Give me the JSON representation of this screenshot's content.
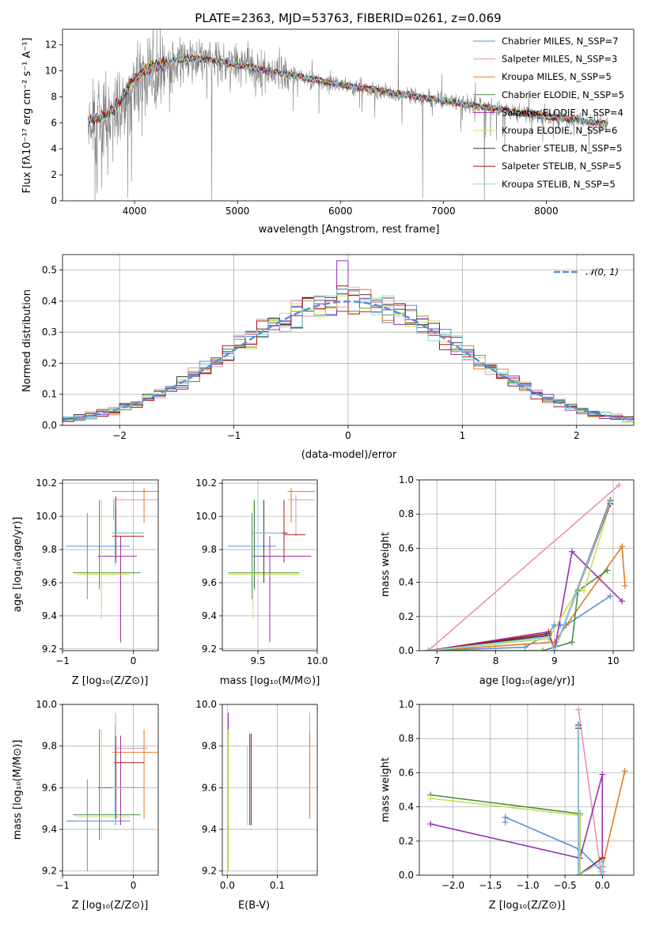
{
  "figure": {
    "title": "PLATE=2363, MJD=53763, FIBERID=0261, z=0.069",
    "panel_1": {
      "xlabel": "wavelength [Angstrom, rest frame]",
      "ylabel": "Flux [fλ10⁻¹⁷ erg cm⁻² s⁻¹ A⁻¹]"
    },
    "panel_2": {
      "xlabel": "(data-model)/error",
      "ylabel": "Normed distribution",
      "legend_gauss": "𝒩(0, 1)"
    },
    "panel_3": {
      "xlabel": "Z [log₁₀(Z/Z⊙)]",
      "ylabel": "age  [log₁₀(age/yr)]"
    },
    "panel_4": {
      "xlabel": "mass [log₁₀(M/M⊙)]"
    },
    "panel_5": {
      "xlabel": "age  [log₁₀(age/yr)]",
      "ylabel": "mass weight"
    },
    "panel_6": {
      "xlabel": "Z [log₁₀(Z/Z⊙)]",
      "ylabel": "mass [log₁₀(M/M⊙)]"
    },
    "panel_7": {
      "xlabel": "E(B-V)"
    },
    "panel_8": {
      "xlabel": "Z [log₁₀(Z/Z⊙)]",
      "ylabel": "mass weight"
    }
  },
  "models": [
    {
      "label": "Chabrier MILES, N_SSP=7",
      "color": "#5b8fd6"
    },
    {
      "label": "Salpeter MILES, N_SSP=3",
      "color": "#e88fbe"
    },
    {
      "label": "Kroupa MILES, N_SSP=5",
      "color": "#e07b1f"
    },
    {
      "label": "Chabrier ELODIE, N_SSP=5",
      "color": "#4a8c4a"
    },
    {
      "label": "Salpeter ELODIE, N_SSP=4",
      "color": "#9b30b0"
    },
    {
      "label": "Kroupa ELODIE, N_SSP=6",
      "color": "#c8e05a"
    },
    {
      "label": "Chabrier STELIB, N_SSP=5",
      "color": "#3a3a3a"
    },
    {
      "label": "Salpeter STELIB, N_SSP=5",
      "color": "#b01515"
    },
    {
      "label": "Kroupa STELIB, N_SSP=5",
      "color": "#80d8e8"
    }
  ],
  "chart_data": [
    {
      "type": "line",
      "panel": "spectrum",
      "xlim": [
        3300,
        8850
      ],
      "ylim": [
        0,
        13.2
      ],
      "xticks": [
        4000,
        5000,
        6000,
        7000,
        8000
      ],
      "yticks": [
        0,
        2,
        4,
        6,
        8,
        10,
        12
      ],
      "grid": false,
      "legend": "top-right",
      "data_color": "#808080",
      "continuum": [
        [
          3550,
          6.2
        ],
        [
          3650,
          6.4
        ],
        [
          3800,
          7.0
        ],
        [
          3950,
          8.8
        ],
        [
          4100,
          10.0
        ],
        [
          4300,
          10.6
        ],
        [
          4500,
          11.0
        ],
        [
          4700,
          10.9
        ],
        [
          4900,
          10.6
        ],
        [
          5100,
          10.3
        ],
        [
          5300,
          10.0
        ],
        [
          5500,
          9.7
        ],
        [
          5700,
          9.4
        ],
        [
          5900,
          9.1
        ],
        [
          6100,
          8.8
        ],
        [
          6300,
          8.6
        ],
        [
          6500,
          8.3
        ],
        [
          6700,
          8.1
        ],
        [
          6900,
          7.8
        ],
        [
          7100,
          7.6
        ],
        [
          7300,
          7.3
        ],
        [
          7500,
          7.1
        ],
        [
          7700,
          6.8
        ],
        [
          7900,
          6.6
        ],
        [
          8100,
          6.4
        ],
        [
          8300,
          6.2
        ],
        [
          8500,
          6.0
        ],
        [
          8600,
          5.9
        ]
      ],
      "features": [
        {
          "x": 3934,
          "y": 0.2
        },
        {
          "x": 3969,
          "y": 1.5
        },
        {
          "x": 4102,
          "y": 6.5
        },
        {
          "x": 4340,
          "y": 6.8
        },
        {
          "x": 4750,
          "y": 0.0
        },
        {
          "x": 5175,
          "y": 8.0
        },
        {
          "x": 5890,
          "y": 8.2
        },
        {
          "x": 6563,
          "y": 13.2
        },
        {
          "x": 6800,
          "y": 0.2
        },
        {
          "x": 7400,
          "y": 0.0
        }
      ]
    },
    {
      "type": "bar",
      "panel": "residual histogram",
      "xlim": [
        -2.5,
        2.5
      ],
      "ylim": [
        0,
        0.55
      ],
      "xticks": [
        -2,
        -1,
        0,
        1,
        2
      ],
      "yticks": [
        0.0,
        0.1,
        0.2,
        0.3,
        0.4,
        0.5
      ],
      "grid": true,
      "legend": "top-right",
      "bin_width": 0.1,
      "gauss_color": "#5b8fd6",
      "peak_bin": {
        "x": -0.05,
        "value": 0.53
      }
    },
    {
      "type": "scatter",
      "panel": "age vs Z",
      "xlim": [
        -1.0,
        0.35
      ],
      "ylim": [
        9.19,
        10.22
      ],
      "xticks": [
        -1,
        0
      ],
      "yticks": [
        9.2,
        9.4,
        9.6,
        9.8,
        10.0,
        10.2
      ],
      "grid": true,
      "points": [
        {
          "x": -0.65,
          "y": 9.82,
          "ex": [
            -0.95,
            -0.05
          ],
          "ey": [
            9.5,
            10.02
          ]
        },
        {
          "x": -0.28,
          "y": 10.1,
          "ex": [
            -0.28,
            0.35
          ],
          "ey": [
            9.98,
            10.1
          ]
        },
        {
          "x": 0.15,
          "y": 10.15,
          "ex": [
            -0.3,
            0.35
          ],
          "ey": [
            9.96,
            10.17
          ]
        },
        {
          "x": -0.48,
          "y": 9.66,
          "ex": [
            -0.85,
            0.1
          ],
          "ey": [
            9.56,
            10.1
          ]
        },
        {
          "x": -0.18,
          "y": 9.76,
          "ex": [
            -0.5,
            0.05
          ],
          "ey": [
            9.24,
            9.88
          ]
        },
        {
          "x": -0.45,
          "y": 9.65,
          "ex": [
            -0.8,
            -0.05
          ],
          "ey": [
            9.38,
            10.1
          ]
        },
        {
          "x": -0.25,
          "y": 9.9,
          "ex": [
            -0.3,
            0.15
          ],
          "ey": [
            9.75,
            10.05
          ]
        },
        {
          "x": -0.25,
          "y": 9.88,
          "ex": [
            -0.3,
            0.15
          ],
          "ey": [
            9.72,
            10.12
          ]
        },
        {
          "x": -0.26,
          "y": 9.9,
          "ex": [
            -0.3,
            0.15
          ],
          "ey": [
            9.7,
            10.1
          ]
        }
      ]
    },
    {
      "type": "scatter",
      "panel": "age vs mass",
      "xlim": [
        9.2,
        10.0
      ],
      "ylim": [
        9.19,
        10.22
      ],
      "xticks": [
        9.5,
        10.0
      ],
      "yticks": [
        9.2,
        9.4,
        9.6,
        9.8,
        10.0,
        10.2
      ],
      "grid": true,
      "points": [
        {
          "x": 9.45,
          "y": 9.82,
          "ex": [
            9.25,
            9.65
          ],
          "ey": [
            9.5,
            10.02
          ]
        },
        {
          "x": 9.82,
          "y": 10.1,
          "ex": [
            9.75,
            9.98
          ],
          "ey": [
            9.88,
            10.13
          ]
        },
        {
          "x": 9.78,
          "y": 10.15,
          "ex": [
            9.75,
            9.98
          ],
          "ey": [
            9.96,
            10.17
          ]
        },
        {
          "x": 9.47,
          "y": 9.66,
          "ex": [
            9.25,
            9.85
          ],
          "ey": [
            9.56,
            10.1
          ]
        },
        {
          "x": 9.6,
          "y": 9.76,
          "ex": [
            9.45,
            9.95
          ],
          "ey": [
            9.24,
            9.88
          ]
        },
        {
          "x": 9.46,
          "y": 9.65,
          "ex": [
            9.25,
            9.85
          ],
          "ey": [
            9.38,
            10.1
          ]
        },
        {
          "x": 9.55,
          "y": 9.9,
          "ex": [
            9.45,
            9.75
          ],
          "ey": [
            9.6,
            10.1
          ]
        },
        {
          "x": 9.72,
          "y": 9.89,
          "ex": [
            9.72,
            9.9
          ],
          "ey": [
            9.72,
            10.1
          ]
        },
        {
          "x": 9.5,
          "y": 9.9,
          "ex": [
            9.45,
            9.7
          ],
          "ey": [
            9.7,
            10.1
          ]
        }
      ]
    },
    {
      "type": "line",
      "panel": "mass weight vs age",
      "xlim": [
        6.7,
        10.35
      ],
      "ylim": [
        0,
        1.0
      ],
      "xticks": [
        7,
        8,
        9,
        10
      ],
      "yticks": [
        0.0,
        0.2,
        0.4,
        0.6,
        0.8,
        1.0
      ],
      "grid": true,
      "series": [
        {
          "x": [
            6.85,
            8.5,
            8.9,
            9.0,
            9.1,
            9.2,
            9.95
          ],
          "y": [
            0.0,
            0.02,
            0.1,
            0.15,
            0.15,
            0.15,
            0.32
          ]
        },
        {
          "x": [
            6.85,
            10.1
          ],
          "y": [
            0.0,
            0.97
          ]
        },
        {
          "x": [
            6.85,
            9.0,
            10.15,
            10.2
          ],
          "y": [
            0.0,
            0.05,
            0.61,
            0.38
          ]
        },
        {
          "x": [
            6.85,
            8.8,
            9.3,
            9.4,
            9.9
          ],
          "y": [
            0.0,
            0.0,
            0.05,
            0.35,
            0.47
          ]
        },
        {
          "x": [
            6.85,
            8.9,
            9.0,
            9.3,
            10.15
          ],
          "y": [
            0.0,
            0.11,
            0.0,
            0.58,
            0.29
          ]
        },
        {
          "x": [
            6.85,
            8.9,
            9.4,
            9.5,
            9.95
          ],
          "y": [
            0.0,
            0.07,
            0.36,
            0.35,
            0.86
          ]
        },
        {
          "x": [
            6.85,
            8.9,
            9.0,
            9.95
          ],
          "y": [
            0.0,
            0.09,
            0.0,
            0.88
          ]
        },
        {
          "x": [
            6.85,
            8.9,
            9.0,
            9.95
          ],
          "y": [
            0.0,
            0.1,
            0.0,
            0.86
          ]
        },
        {
          "x": [
            6.85,
            8.9,
            9.0,
            9.95
          ],
          "y": [
            0.0,
            0.08,
            0.0,
            0.87
          ]
        }
      ]
    },
    {
      "type": "scatter",
      "panel": "mass vs Z",
      "xlim": [
        -1.0,
        0.35
      ],
      "ylim": [
        9.18,
        10.0
      ],
      "xticks": [
        -1,
        0
      ],
      "yticks": [
        9.2,
        9.4,
        9.6,
        9.8,
        10.0
      ],
      "grid": true,
      "points": [
        {
          "x": -0.65,
          "y": 9.44,
          "ex": [
            -0.95,
            -0.05
          ],
          "ey": [
            9.2,
            9.64
          ]
        },
        {
          "x": -0.25,
          "y": 9.79,
          "ex": [
            -0.28,
            0.2
          ],
          "ey": [
            9.42,
            9.96
          ]
        },
        {
          "x": 0.15,
          "y": 9.77,
          "ex": [
            -0.3,
            0.35
          ],
          "ey": [
            9.45,
            9.88
          ]
        },
        {
          "x": -0.48,
          "y": 9.47,
          "ex": [
            -0.85,
            0.1
          ],
          "ey": [
            9.35,
            9.88
          ]
        },
        {
          "x": -0.18,
          "y": 9.6,
          "ex": [
            -0.5,
            0.05
          ],
          "ey": [
            9.42,
            9.85
          ]
        },
        {
          "x": -0.45,
          "y": 9.46,
          "ex": [
            -0.8,
            -0.05
          ],
          "ey": [
            9.35,
            9.88
          ]
        },
        {
          "x": -0.25,
          "y": 9.6,
          "ex": [
            -0.3,
            0.15
          ],
          "ey": [
            9.45,
            9.8
          ]
        },
        {
          "x": -0.25,
          "y": 9.72,
          "ex": [
            -0.28,
            0.15
          ],
          "ey": [
            9.55,
            9.85
          ]
        },
        {
          "x": -0.26,
          "y": 9.6,
          "ex": [
            -0.3,
            0.15
          ],
          "ey": [
            9.42,
            9.9
          ]
        }
      ]
    },
    {
      "type": "scatter",
      "panel": "mass vs E(B-V)",
      "xlim": [
        -0.01,
        0.18
      ],
      "ylim": [
        9.18,
        10.0
      ],
      "xticks": [
        0.0,
        0.1
      ],
      "yticks": [
        9.2,
        9.4,
        9.6,
        9.8,
        10.0
      ],
      "grid": true,
      "points": [
        {
          "x": 0.002,
          "y": 9.8,
          "ey": [
            9.2,
            9.96
          ]
        },
        {
          "x": 0.165,
          "y": 9.8,
          "ey": [
            9.45,
            9.96
          ]
        },
        {
          "x": 0.165,
          "y": 9.75,
          "ey": [
            9.45,
            9.86
          ]
        },
        {
          "x": 0.002,
          "y": 9.6,
          "ey": [
            9.2,
            9.88
          ]
        },
        {
          "x": 0.002,
          "y": 9.85,
          "ey": [
            9.85,
            9.96
          ]
        },
        {
          "x": 0.002,
          "y": 9.6,
          "ey": [
            9.2,
            9.88
          ]
        },
        {
          "x": 0.045,
          "y": 9.6,
          "ey": [
            9.42,
            9.86
          ]
        },
        {
          "x": 0.048,
          "y": 9.6,
          "ey": [
            9.42,
            9.86
          ]
        },
        {
          "x": 0.04,
          "y": 9.6,
          "ey": [
            9.42,
            9.8
          ]
        }
      ]
    },
    {
      "type": "line",
      "panel": "mass weight vs Z",
      "xlim": [
        -2.45,
        0.42
      ],
      "ylim": [
        0,
        1.0
      ],
      "xticks": [
        -2.0,
        -1.5,
        -1.0,
        -0.5,
        0.0
      ],
      "yticks": [
        0.0,
        0.2,
        0.4,
        0.6,
        0.8,
        1.0
      ],
      "grid": true,
      "series": [
        {
          "x": [
            -1.3,
            -1.3,
            -0.3,
            -0.3,
            0.0,
            0.0
          ],
          "y": [
            0.31,
            0.34,
            0.15,
            0.15,
            0.02,
            0.05
          ]
        },
        {
          "x": [
            -0.32,
            -0.02,
            0.0
          ],
          "y": [
            0.97,
            0.02,
            0.0
          ]
        },
        {
          "x": [
            0.0,
            0.0,
            0.3
          ],
          "y": [
            0.0,
            0.05,
            0.61
          ]
        },
        {
          "x": [
            -2.3,
            -0.3,
            -0.3,
            0.0
          ],
          "y": [
            0.47,
            0.36,
            0.0,
            0.0
          ]
        },
        {
          "x": [
            -2.3,
            -0.3,
            0.0,
            0.0
          ],
          "y": [
            0.3,
            0.1,
            0.59,
            0.0
          ]
        },
        {
          "x": [
            -2.3,
            -0.3,
            -0.3,
            0.0
          ],
          "y": [
            0.45,
            0.35,
            0.0,
            0.0
          ]
        },
        {
          "x": [
            -0.32,
            -0.32,
            0.0,
            0.0
          ],
          "y": [
            0.88,
            0.0,
            0.1,
            0.0
          ]
        },
        {
          "x": [
            -0.32,
            -0.32,
            0.0,
            0.0
          ],
          "y": [
            0.86,
            0.0,
            0.1,
            0.0
          ]
        },
        {
          "x": [
            -0.32,
            -0.32,
            0.0,
            0.0
          ],
          "y": [
            0.87,
            0.0,
            0.08,
            0.0
          ]
        }
      ]
    }
  ]
}
